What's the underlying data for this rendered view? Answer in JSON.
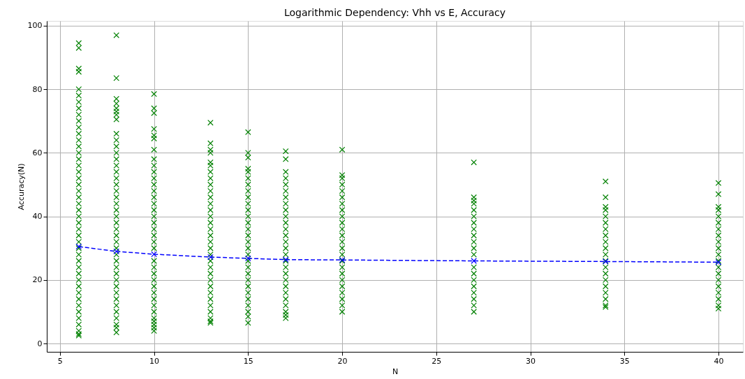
{
  "chart_data": {
    "type": "scatter",
    "title": "Logarithmic Dependency: Vhh vs E, Accuracy",
    "xlabel": "N",
    "ylabel": "Accuracy(N)",
    "xlim": [
      4.3,
      41.3
    ],
    "ylim": [
      -2.6,
      101.5
    ],
    "xticks": [
      5,
      10,
      15,
      20,
      25,
      30,
      35,
      40
    ],
    "yticks": [
      0,
      20,
      40,
      60,
      80,
      100
    ],
    "grid": true,
    "marker": "cross",
    "series": [
      {
        "color": "#008000",
        "x": [
          6,
          6,
          6,
          6,
          6,
          6,
          6,
          6,
          6,
          6,
          6,
          6,
          6,
          6,
          6,
          6,
          6,
          6,
          6,
          6,
          6,
          6,
          6,
          6,
          6,
          6,
          6,
          6,
          6,
          6,
          6,
          6,
          6,
          6,
          6,
          6,
          6,
          6,
          6,
          6,
          6,
          6,
          6,
          6,
          6
        ],
        "values": [
          2.5,
          3,
          4,
          6,
          8,
          10,
          12,
          14,
          16,
          18,
          20,
          22,
          24,
          26,
          28,
          30,
          32,
          34,
          36,
          38,
          40,
          42,
          44,
          46,
          48,
          50,
          52,
          54,
          56,
          58,
          60,
          62,
          64,
          66,
          68,
          70,
          72,
          74,
          76,
          78,
          80,
          85.5,
          86.5,
          93,
          94.5
        ]
      },
      {
        "color": "#008000",
        "x": [
          8,
          8,
          8,
          8,
          8,
          8,
          8,
          8,
          8,
          8,
          8,
          8,
          8,
          8,
          8,
          8,
          8,
          8,
          8,
          8,
          8,
          8,
          8,
          8,
          8,
          8,
          8,
          8,
          8,
          8,
          8,
          8,
          8,
          8,
          8,
          8,
          8,
          8,
          8,
          8,
          8
        ],
        "values": [
          3.5,
          5,
          6,
          8,
          10,
          12,
          14,
          16,
          18,
          20,
          22,
          24,
          26,
          28,
          30,
          32,
          34,
          36,
          38,
          40,
          42,
          44,
          46,
          48,
          50,
          52,
          54,
          56,
          58,
          60,
          62,
          64,
          66,
          70.5,
          72,
          73,
          74,
          75.5,
          77,
          83.5,
          97
        ]
      },
      {
        "color": "#008000",
        "x": [
          10,
          10,
          10,
          10,
          10,
          10,
          10,
          10,
          10,
          10,
          10,
          10,
          10,
          10,
          10,
          10,
          10,
          10,
          10,
          10,
          10,
          10,
          10,
          10,
          10,
          10,
          10,
          10,
          10,
          10,
          10,
          10,
          10,
          10,
          10,
          10
        ],
        "values": [
          4,
          5,
          6,
          7,
          8,
          10,
          12,
          14,
          16,
          18,
          20,
          22,
          24,
          26,
          30,
          32,
          34,
          36,
          38,
          40,
          42,
          44,
          46,
          48,
          50,
          52,
          54,
          56,
          58,
          61,
          64.5,
          65.5,
          67.5,
          72.5,
          74,
          78.5
        ]
      },
      {
        "color": "#008000",
        "x": [
          13,
          13,
          13,
          13,
          13,
          13,
          13,
          13,
          13,
          13,
          13,
          13,
          13,
          13,
          13,
          13,
          13,
          13,
          13,
          13,
          13,
          13,
          13,
          13,
          13,
          13,
          13,
          13,
          13,
          13,
          13,
          13
        ],
        "values": [
          6.5,
          7,
          8,
          10,
          12,
          14,
          16,
          18,
          20,
          22,
          24,
          26,
          28,
          30,
          32,
          34,
          36,
          38,
          40,
          42,
          44,
          46,
          48,
          50,
          52,
          54,
          56,
          57,
          60,
          61,
          63,
          69.5
        ]
      },
      {
        "color": "#008000",
        "x": [
          15,
          15,
          15,
          15,
          15,
          15,
          15,
          15,
          15,
          15,
          15,
          15,
          15,
          15,
          15,
          15,
          15,
          15,
          15,
          15,
          15,
          15,
          15,
          15,
          15,
          15,
          15,
          15,
          15
        ],
        "values": [
          6.5,
          8.5,
          10,
          12,
          14,
          16,
          18,
          20,
          22,
          24,
          26,
          28,
          30,
          32,
          34,
          36,
          38,
          40,
          42,
          44,
          46,
          48,
          50,
          52,
          54,
          55,
          58.5,
          60,
          66.5
        ]
      },
      {
        "color": "#008000",
        "x": [
          17,
          17,
          17,
          17,
          17,
          17,
          17,
          17,
          17,
          17,
          17,
          17,
          17,
          17,
          17,
          17,
          17,
          17,
          17,
          17,
          17,
          17,
          17,
          17,
          17,
          17,
          17
        ],
        "values": [
          8,
          9,
          10,
          12,
          14,
          16,
          18,
          20,
          22,
          24,
          26,
          28,
          30,
          32,
          34,
          36,
          38,
          40,
          42,
          44,
          46,
          48,
          50,
          52,
          54,
          58,
          60.5
        ]
      },
      {
        "color": "#008000",
        "x": [
          20,
          20,
          20,
          20,
          20,
          20,
          20,
          20,
          20,
          20,
          20,
          20,
          20,
          20,
          20,
          20,
          20,
          20,
          20,
          20,
          20,
          20,
          20,
          20
        ],
        "values": [
          10,
          12,
          14,
          16,
          18,
          20,
          22,
          24,
          26,
          28,
          30,
          32,
          34,
          36,
          38,
          40,
          42,
          44,
          46,
          48,
          50,
          52,
          53,
          61
        ]
      },
      {
        "color": "#008000",
        "x": [
          27,
          27,
          27,
          27,
          27,
          27,
          27,
          27,
          27,
          27,
          27,
          27,
          27,
          27,
          27,
          27,
          27,
          27,
          27,
          27
        ],
        "values": [
          10,
          12,
          14,
          16,
          18,
          20,
          22,
          24,
          28,
          30,
          32,
          34,
          36,
          38,
          40,
          42,
          44,
          45,
          46,
          57
        ]
      },
      {
        "color": "#008000",
        "x": [
          34,
          34,
          34,
          34,
          34,
          34,
          34,
          34,
          34,
          34,
          34,
          34,
          34,
          34,
          34,
          34,
          34,
          34,
          34,
          34
        ],
        "values": [
          11.5,
          12,
          14,
          16,
          18,
          20,
          22,
          24,
          26,
          28,
          30,
          32,
          34,
          36,
          38,
          40,
          42,
          43,
          46,
          51
        ]
      },
      {
        "color": "#008000",
        "x": [
          40,
          40,
          40,
          40,
          40,
          40,
          40,
          40,
          40,
          40,
          40,
          40,
          40,
          40,
          40,
          40,
          40,
          40,
          40,
          40
        ],
        "values": [
          11,
          12,
          14,
          16,
          18,
          20,
          22,
          24,
          26,
          28,
          30,
          32,
          34,
          36,
          38,
          40,
          42,
          43,
          47,
          50.5
        ]
      },
      {
        "type": "line",
        "color": "#0000ff",
        "line_style": "dashed",
        "x": [
          6,
          8,
          10,
          13,
          15,
          17,
          20,
          27,
          34,
          40
        ],
        "values": [
          30.5,
          29,
          28.1,
          27.2,
          26.8,
          26.4,
          26.3,
          26,
          25.8,
          25.6
        ]
      }
    ]
  }
}
